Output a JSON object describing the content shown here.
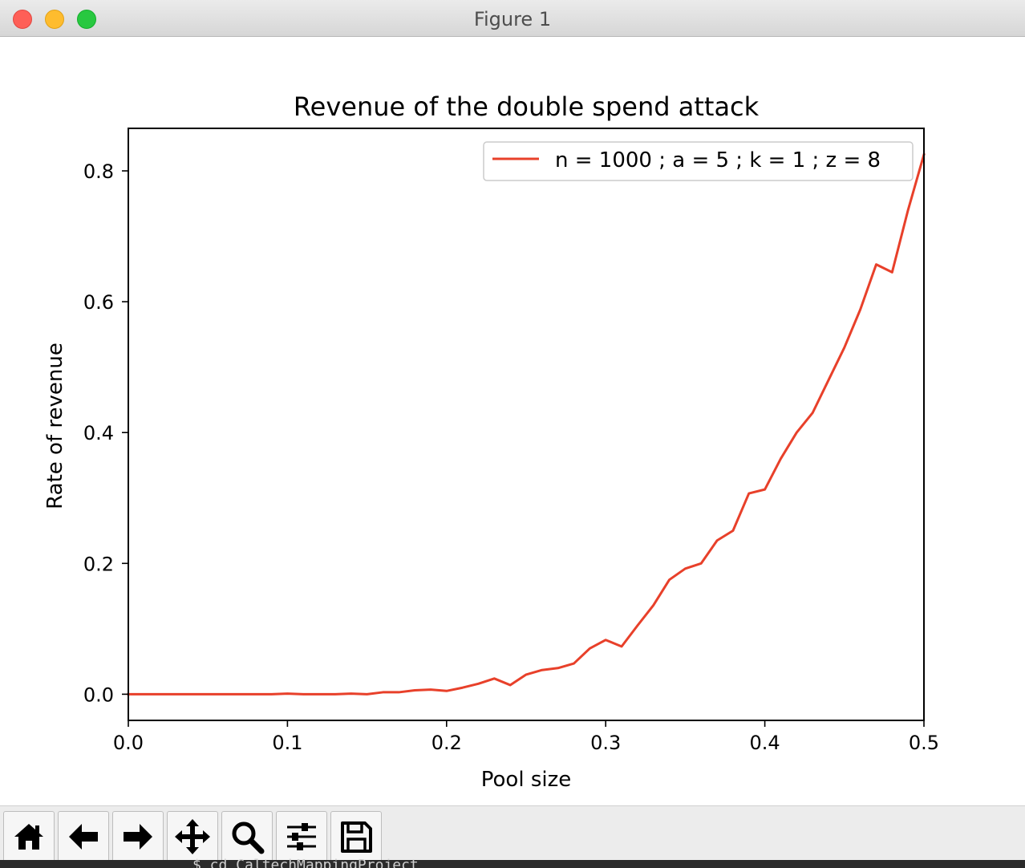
{
  "window": {
    "title": "Figure 1"
  },
  "colors": {
    "series_line": "#e8402a",
    "axes": "#000000",
    "background": "#ffffff",
    "legend_border": "#cccccc"
  },
  "toolbar": {
    "buttons": [
      {
        "name": "home-button",
        "icon": "home-icon"
      },
      {
        "name": "back-button",
        "icon": "arrow-left-icon"
      },
      {
        "name": "forward-button",
        "icon": "arrow-right-icon"
      },
      {
        "name": "pan-button",
        "icon": "move-icon"
      },
      {
        "name": "zoom-button",
        "icon": "magnifier-icon"
      },
      {
        "name": "configure-subplots-button",
        "icon": "sliders-icon"
      },
      {
        "name": "save-button",
        "icon": "floppy-disk-icon"
      }
    ]
  },
  "terminal": {
    "text": "$ cd CaltechMappingProject"
  },
  "chart_data": {
    "type": "line",
    "title": "Revenue of the double spend attack",
    "xlabel": "Pool size",
    "ylabel": "Rate of revenue",
    "xlim": [
      0.0,
      0.5
    ],
    "ylim": [
      -0.04,
      0.865
    ],
    "xticks": [
      "0.0",
      "0.1",
      "0.2",
      "0.3",
      "0.4",
      "0.5"
    ],
    "yticks": [
      "0.0",
      "0.2",
      "0.4",
      "0.6",
      "0.8"
    ],
    "grid": false,
    "legend_placement": "top-right",
    "series": [
      {
        "name": "n = 1000 ; a = 5 ; k = 1 ; z = 8",
        "color": "#e8402a",
        "x": [
          0.0,
          0.01,
          0.02,
          0.03,
          0.04,
          0.05,
          0.06,
          0.07,
          0.08,
          0.09,
          0.1,
          0.11,
          0.12,
          0.13,
          0.14,
          0.15,
          0.16,
          0.17,
          0.18,
          0.19,
          0.2,
          0.21,
          0.22,
          0.23,
          0.24,
          0.25,
          0.26,
          0.27,
          0.28,
          0.29,
          0.3,
          0.31,
          0.32,
          0.33,
          0.34,
          0.35,
          0.36,
          0.37,
          0.38,
          0.39,
          0.4,
          0.41,
          0.42,
          0.43,
          0.44,
          0.45,
          0.46,
          0.47,
          0.48,
          0.49,
          0.5
        ],
        "y": [
          0.0,
          0.0,
          0.0,
          0.0,
          0.0,
          0.0,
          0.0,
          0.0,
          0.0,
          0.0,
          0.001,
          0.0,
          0.0,
          0.0,
          0.001,
          0.0,
          0.003,
          0.003,
          0.006,
          0.007,
          0.005,
          0.01,
          0.016,
          0.024,
          0.014,
          0.03,
          0.037,
          0.04,
          0.047,
          0.07,
          0.083,
          0.073,
          0.105,
          0.136,
          0.175,
          0.192,
          0.2,
          0.235,
          0.25,
          0.307,
          0.313,
          0.36,
          0.4,
          0.43,
          0.48,
          0.53,
          0.588,
          0.657,
          0.645,
          0.74,
          0.825
        ]
      }
    ]
  }
}
